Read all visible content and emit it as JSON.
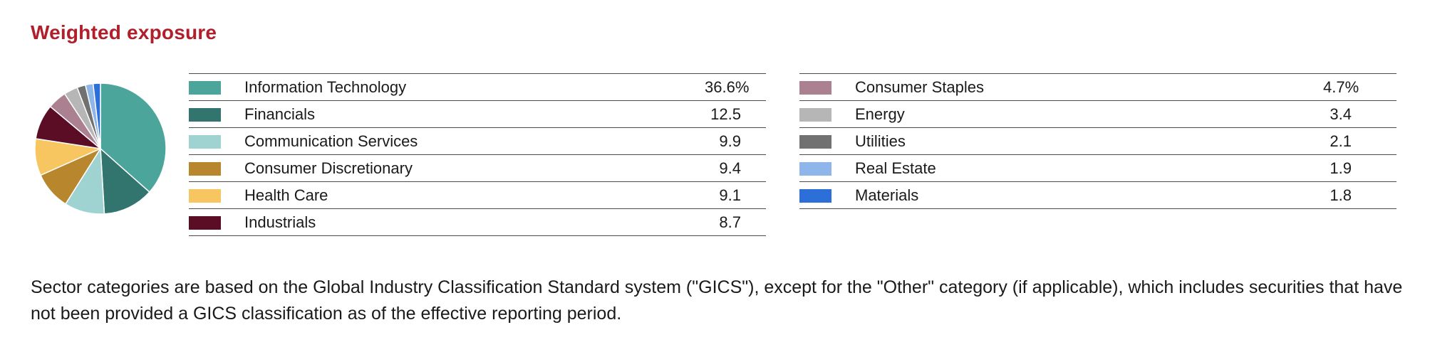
{
  "title": "Weighted exposure",
  "footnote": "Sector categories are based on the Global Industry Classification Standard system (\"GICS\"), except for the \"Other\" category (if applicable), which includes securities that have not been provided a GICS classification as of the effective reporting period.",
  "chart_data": {
    "type": "pie",
    "unit": "%",
    "start_angle_deg": 0,
    "direction": "clockwise",
    "slices": [
      {
        "label": "Information Technology",
        "value": 36.6,
        "display": "36.6%",
        "color": "#4ba59b",
        "column": "left"
      },
      {
        "label": "Financials",
        "value": 12.5,
        "display": "12.5",
        "color": "#32756e",
        "column": "left"
      },
      {
        "label": "Communication Services",
        "value": 9.9,
        "display": "9.9",
        "color": "#9fd3d1",
        "column": "left"
      },
      {
        "label": "Consumer Discretionary",
        "value": 9.4,
        "display": "9.4",
        "color": "#b8872d",
        "column": "left"
      },
      {
        "label": "Health Care",
        "value": 9.1,
        "display": "9.1",
        "color": "#f7c660",
        "column": "left"
      },
      {
        "label": "Industrials",
        "value": 8.7,
        "display": "8.7",
        "color": "#5c0d26",
        "column": "left"
      },
      {
        "label": "Consumer Staples",
        "value": 4.7,
        "display": "4.7%",
        "color": "#ab8191",
        "column": "right"
      },
      {
        "label": "Energy",
        "value": 3.4,
        "display": "3.4",
        "color": "#b6b6b6",
        "column": "right"
      },
      {
        "label": "Utilities",
        "value": 2.1,
        "display": "2.1",
        "color": "#717171",
        "column": "right"
      },
      {
        "label": "Real Estate",
        "value": 1.9,
        "display": "1.9",
        "color": "#8fb6ea",
        "column": "right"
      },
      {
        "label": "Materials",
        "value": 1.8,
        "display": "1.8",
        "color": "#2d6fd8",
        "column": "right"
      }
    ]
  }
}
